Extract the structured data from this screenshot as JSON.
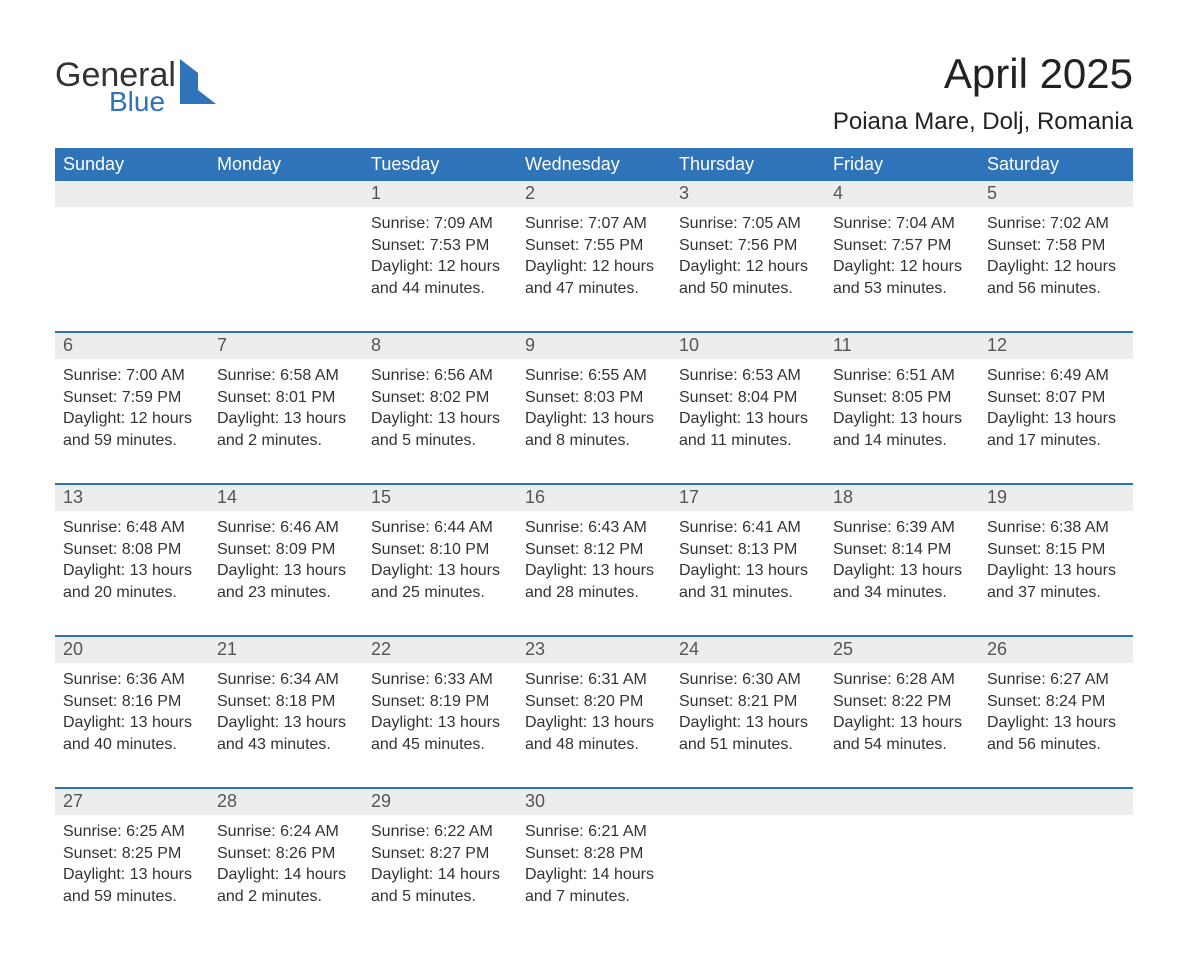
{
  "brand": {
    "word1": "General",
    "word2": "Blue"
  },
  "colors": {
    "header_bg": "#2f73b8",
    "header_text": "#ffffff",
    "date_bg": "#eceded",
    "date_text": "#555555",
    "body_text": "#333333",
    "rule": "#2f73b8",
    "page_bg": "#ffffff",
    "logo_blue": "#2f73b8"
  },
  "typography": {
    "title_fontsize": 42,
    "location_fontsize": 24,
    "header_fontsize": 18,
    "date_fontsize": 18,
    "cell_fontsize": 16
  },
  "title": "April 2025",
  "location": "Poiana Mare, Dolj, Romania",
  "day_names": [
    "Sunday",
    "Monday",
    "Tuesday",
    "Wednesday",
    "Thursday",
    "Friday",
    "Saturday"
  ],
  "labels": {
    "sunrise": "Sunrise:",
    "sunset": "Sunset:",
    "daylight": "Daylight:"
  },
  "weeks": [
    {
      "dates": [
        "",
        "",
        "1",
        "2",
        "3",
        "4",
        "5"
      ],
      "cells": [
        null,
        null,
        {
          "sunrise": "7:09 AM",
          "sunset": "7:53 PM",
          "daylight_h": 12,
          "daylight_m": 44
        },
        {
          "sunrise": "7:07 AM",
          "sunset": "7:55 PM",
          "daylight_h": 12,
          "daylight_m": 47
        },
        {
          "sunrise": "7:05 AM",
          "sunset": "7:56 PM",
          "daylight_h": 12,
          "daylight_m": 50
        },
        {
          "sunrise": "7:04 AM",
          "sunset": "7:57 PM",
          "daylight_h": 12,
          "daylight_m": 53
        },
        {
          "sunrise": "7:02 AM",
          "sunset": "7:58 PM",
          "daylight_h": 12,
          "daylight_m": 56
        }
      ]
    },
    {
      "dates": [
        "6",
        "7",
        "8",
        "9",
        "10",
        "11",
        "12"
      ],
      "cells": [
        {
          "sunrise": "7:00 AM",
          "sunset": "7:59 PM",
          "daylight_h": 12,
          "daylight_m": 59
        },
        {
          "sunrise": "6:58 AM",
          "sunset": "8:01 PM",
          "daylight_h": 13,
          "daylight_m": 2
        },
        {
          "sunrise": "6:56 AM",
          "sunset": "8:02 PM",
          "daylight_h": 13,
          "daylight_m": 5
        },
        {
          "sunrise": "6:55 AM",
          "sunset": "8:03 PM",
          "daylight_h": 13,
          "daylight_m": 8
        },
        {
          "sunrise": "6:53 AM",
          "sunset": "8:04 PM",
          "daylight_h": 13,
          "daylight_m": 11
        },
        {
          "sunrise": "6:51 AM",
          "sunset": "8:05 PM",
          "daylight_h": 13,
          "daylight_m": 14
        },
        {
          "sunrise": "6:49 AM",
          "sunset": "8:07 PM",
          "daylight_h": 13,
          "daylight_m": 17
        }
      ]
    },
    {
      "dates": [
        "13",
        "14",
        "15",
        "16",
        "17",
        "18",
        "19"
      ],
      "cells": [
        {
          "sunrise": "6:48 AM",
          "sunset": "8:08 PM",
          "daylight_h": 13,
          "daylight_m": 20
        },
        {
          "sunrise": "6:46 AM",
          "sunset": "8:09 PM",
          "daylight_h": 13,
          "daylight_m": 23
        },
        {
          "sunrise": "6:44 AM",
          "sunset": "8:10 PM",
          "daylight_h": 13,
          "daylight_m": 25
        },
        {
          "sunrise": "6:43 AM",
          "sunset": "8:12 PM",
          "daylight_h": 13,
          "daylight_m": 28
        },
        {
          "sunrise": "6:41 AM",
          "sunset": "8:13 PM",
          "daylight_h": 13,
          "daylight_m": 31
        },
        {
          "sunrise": "6:39 AM",
          "sunset": "8:14 PM",
          "daylight_h": 13,
          "daylight_m": 34
        },
        {
          "sunrise": "6:38 AM",
          "sunset": "8:15 PM",
          "daylight_h": 13,
          "daylight_m": 37
        }
      ]
    },
    {
      "dates": [
        "20",
        "21",
        "22",
        "23",
        "24",
        "25",
        "26"
      ],
      "cells": [
        {
          "sunrise": "6:36 AM",
          "sunset": "8:16 PM",
          "daylight_h": 13,
          "daylight_m": 40
        },
        {
          "sunrise": "6:34 AM",
          "sunset": "8:18 PM",
          "daylight_h": 13,
          "daylight_m": 43
        },
        {
          "sunrise": "6:33 AM",
          "sunset": "8:19 PM",
          "daylight_h": 13,
          "daylight_m": 45
        },
        {
          "sunrise": "6:31 AM",
          "sunset": "8:20 PM",
          "daylight_h": 13,
          "daylight_m": 48
        },
        {
          "sunrise": "6:30 AM",
          "sunset": "8:21 PM",
          "daylight_h": 13,
          "daylight_m": 51
        },
        {
          "sunrise": "6:28 AM",
          "sunset": "8:22 PM",
          "daylight_h": 13,
          "daylight_m": 54
        },
        {
          "sunrise": "6:27 AM",
          "sunset": "8:24 PM",
          "daylight_h": 13,
          "daylight_m": 56
        }
      ]
    },
    {
      "dates": [
        "27",
        "28",
        "29",
        "30",
        "",
        "",
        ""
      ],
      "cells": [
        {
          "sunrise": "6:25 AM",
          "sunset": "8:25 PM",
          "daylight_h": 13,
          "daylight_m": 59
        },
        {
          "sunrise": "6:24 AM",
          "sunset": "8:26 PM",
          "daylight_h": 14,
          "daylight_m": 2
        },
        {
          "sunrise": "6:22 AM",
          "sunset": "8:27 PM",
          "daylight_h": 14,
          "daylight_m": 5
        },
        {
          "sunrise": "6:21 AM",
          "sunset": "8:28 PM",
          "daylight_h": 14,
          "daylight_m": 7
        },
        null,
        null,
        null
      ]
    }
  ]
}
